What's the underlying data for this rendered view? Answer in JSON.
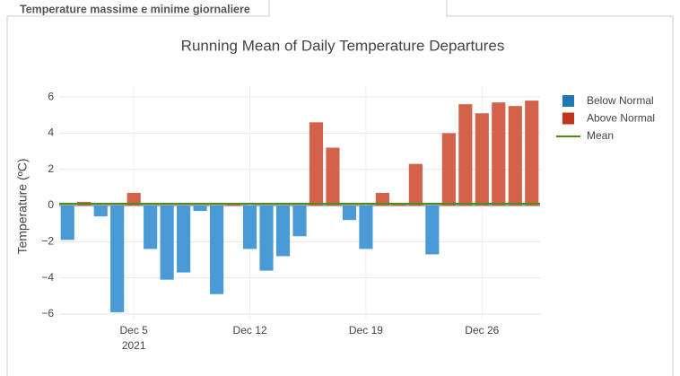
{
  "tabs": {
    "label": "Temperature massime e minime giornaliere"
  },
  "chart_data": {
    "type": "bar",
    "title": "Running Mean of Daily Temperature Departures",
    "y_label": "Temperature (ºC)",
    "x": [
      "2021-12-01",
      "2021-12-02",
      "2021-12-03",
      "2021-12-04",
      "2021-12-05",
      "2021-12-06",
      "2021-12-07",
      "2021-12-08",
      "2021-12-09",
      "2021-12-10",
      "2021-12-11",
      "2021-12-12",
      "2021-12-13",
      "2021-12-14",
      "2021-12-15",
      "2021-12-16",
      "2021-12-17",
      "2021-12-18",
      "2021-12-19",
      "2021-12-20",
      "2021-12-21",
      "2021-12-22",
      "2021-12-23",
      "2021-12-24",
      "2021-12-25",
      "2021-12-26",
      "2021-12-27",
      "2021-12-28",
      "2021-12-29"
    ],
    "series": [
      {
        "name": "Below Normal",
        "color": "#4a9ad6",
        "values": [
          -1.9,
          null,
          -0.6,
          -5.9,
          null,
          -2.4,
          -4.1,
          -3.7,
          -0.3,
          -4.9,
          null,
          -2.4,
          -3.6,
          -2.8,
          -1.7,
          null,
          null,
          -0.8,
          -2.4,
          null,
          null,
          null,
          -2.7,
          null,
          null,
          null,
          null,
          null,
          null
        ]
      },
      {
        "name": "Above Normal",
        "color": "#d2634a",
        "values": [
          null,
          0.2,
          null,
          null,
          0.7,
          null,
          null,
          null,
          null,
          null,
          0.1,
          null,
          null,
          null,
          null,
          4.6,
          3.2,
          null,
          null,
          0.7,
          0.1,
          2.3,
          null,
          4.0,
          5.6,
          5.1,
          5.7,
          5.5,
          5.8
        ]
      }
    ],
    "legend_colors": [
      "#1f77b4",
      "#c0361c"
    ],
    "mean": {
      "name": "Mean",
      "color": "#4f8a1a",
      "value": 0.1
    },
    "xlim": [
      "2021-11-30T12:00Z",
      "2021-12-29T12:00Z"
    ],
    "xticks": [
      {
        "value": "2021-12-05",
        "label": "Dec 5",
        "sublabel": "2021"
      },
      {
        "value": "2021-12-12",
        "label": "Dec 12"
      },
      {
        "value": "2021-12-19",
        "label": "Dec 19"
      },
      {
        "value": "2021-12-26",
        "label": "Dec 26"
      }
    ],
    "ylim": [
      -6.3,
      6.6
    ],
    "yticks": [
      {
        "value": -6,
        "label": "−6"
      },
      {
        "value": -4,
        "label": "−4"
      },
      {
        "value": -2,
        "label": "−2"
      },
      0,
      2,
      4,
      6
    ],
    "grid": true,
    "legend": "right"
  }
}
